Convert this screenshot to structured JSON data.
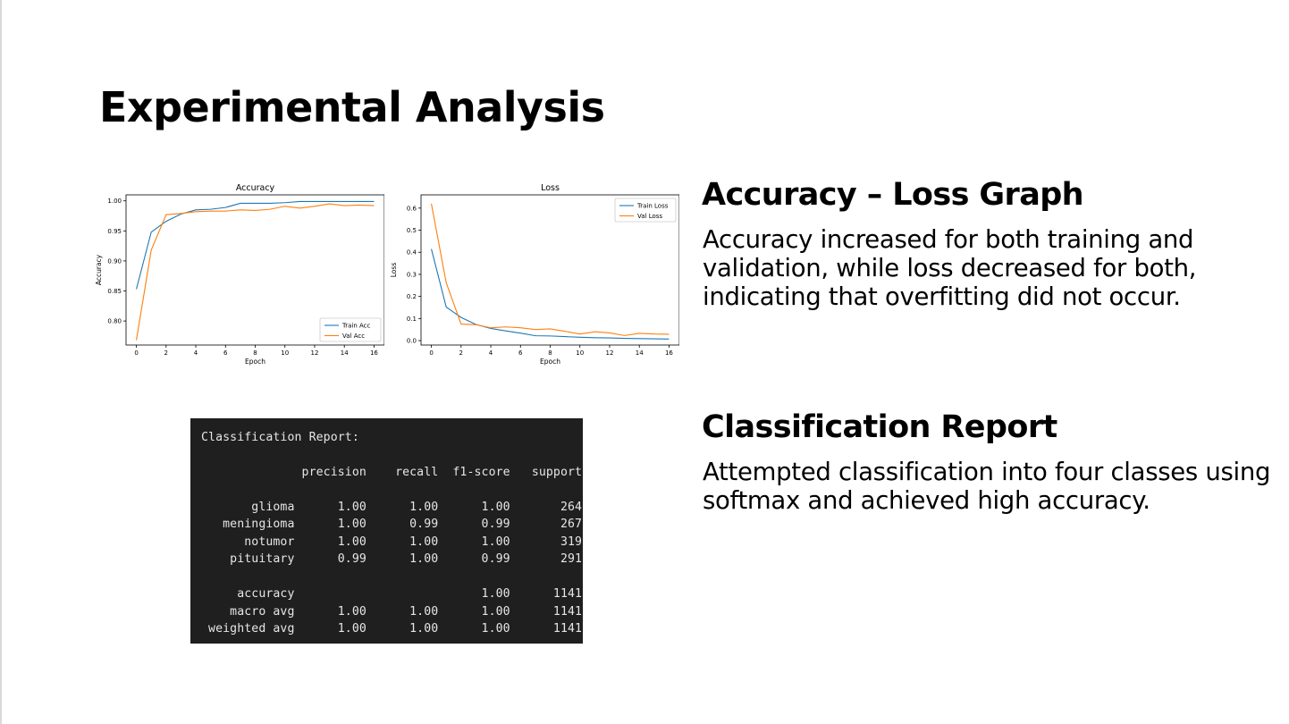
{
  "slide": {
    "title": "Experimental Analysis"
  },
  "sections": [
    {
      "heading": "Accuracy – Loss Graph",
      "body": "Accuracy increased for both training and validation, while loss decreased for both, indicating that overfitting did not occur."
    },
    {
      "heading": "Classification Report",
      "body": "Attempted classification into four classes using softmax and achieved high accuracy."
    }
  ],
  "report": {
    "title": "Classification Report:",
    "columns": [
      "precision",
      "recall",
      "f1-score",
      "support"
    ],
    "rows": [
      {
        "label": "glioma",
        "values": [
          "1.00",
          "1.00",
          "1.00",
          "264"
        ]
      },
      {
        "label": "meningioma",
        "values": [
          "1.00",
          "0.99",
          "0.99",
          "267"
        ]
      },
      {
        "label": "notumor",
        "values": [
          "1.00",
          "1.00",
          "1.00",
          "319"
        ]
      },
      {
        "label": "pituitary",
        "values": [
          "0.99",
          "1.00",
          "0.99",
          "291"
        ]
      }
    ],
    "summary": [
      {
        "label": "accuracy",
        "values": [
          "",
          "",
          "1.00",
          "1141"
        ]
      },
      {
        "label": "macro avg",
        "values": [
          "1.00",
          "1.00",
          "1.00",
          "1141"
        ]
      },
      {
        "label": "weighted avg",
        "values": [
          "1.00",
          "1.00",
          "1.00",
          "1141"
        ]
      }
    ]
  },
  "colors": {
    "train": "#1f77b4",
    "val": "#ff7f0e",
    "report_bg": "#1f1f1f",
    "report_text": "#e6e6e6"
  },
  "chart_data": [
    {
      "type": "line",
      "title": "Accuracy",
      "xlabel": "Epoch",
      "ylabel": "Accuracy",
      "xlim": [
        0,
        16
      ],
      "ylim": [
        0.76,
        1.01
      ],
      "xticks": [
        "0",
        "2",
        "4",
        "6",
        "8",
        "10",
        "12",
        "14",
        "16"
      ],
      "yticks": [
        "0.80",
        "0.85",
        "0.90",
        "0.95",
        "1.00"
      ],
      "legend_position": "lower-right",
      "grid": false,
      "x": [
        0,
        1,
        2,
        3,
        4,
        5,
        6,
        7,
        8,
        9,
        10,
        11,
        12,
        13,
        14,
        15,
        16
      ],
      "series": [
        {
          "name": "Train Acc",
          "color": "#1f77b4",
          "values": [
            0.853,
            0.948,
            0.966,
            0.978,
            0.985,
            0.986,
            0.989,
            0.996,
            0.996,
            0.996,
            0.997,
            0.999,
            0.999,
            0.999,
            0.999,
            0.999,
            0.999
          ]
        },
        {
          "name": "Val Acc",
          "color": "#ff7f0e",
          "values": [
            0.768,
            0.918,
            0.977,
            0.979,
            0.982,
            0.983,
            0.983,
            0.985,
            0.984,
            0.986,
            0.991,
            0.988,
            0.991,
            0.995,
            0.992,
            0.993,
            0.992
          ]
        }
      ]
    },
    {
      "type": "line",
      "title": "Loss",
      "xlabel": "Epoch",
      "ylabel": "Loss",
      "xlim": [
        0,
        16
      ],
      "ylim": [
        -0.02,
        0.66
      ],
      "xticks": [
        "0",
        "2",
        "4",
        "6",
        "8",
        "10",
        "12",
        "14",
        "16"
      ],
      "yticks": [
        "0.0",
        "0.1",
        "0.2",
        "0.3",
        "0.4",
        "0.5",
        "0.6"
      ],
      "legend_position": "upper-right",
      "grid": false,
      "x": [
        0,
        1,
        2,
        3,
        4,
        5,
        6,
        7,
        8,
        9,
        10,
        11,
        12,
        13,
        14,
        15,
        16
      ],
      "series": [
        {
          "name": "Train Loss",
          "color": "#1f77b4",
          "values": [
            0.415,
            0.152,
            0.105,
            0.073,
            0.055,
            0.044,
            0.034,
            0.022,
            0.021,
            0.018,
            0.015,
            0.013,
            0.012,
            0.01,
            0.009,
            0.008,
            0.007
          ]
        },
        {
          "name": "Val Loss",
          "color": "#ff7f0e",
          "values": [
            0.62,
            0.262,
            0.075,
            0.072,
            0.058,
            0.062,
            0.058,
            0.05,
            0.053,
            0.042,
            0.03,
            0.04,
            0.035,
            0.023,
            0.033,
            0.03,
            0.029
          ]
        }
      ]
    }
  ]
}
